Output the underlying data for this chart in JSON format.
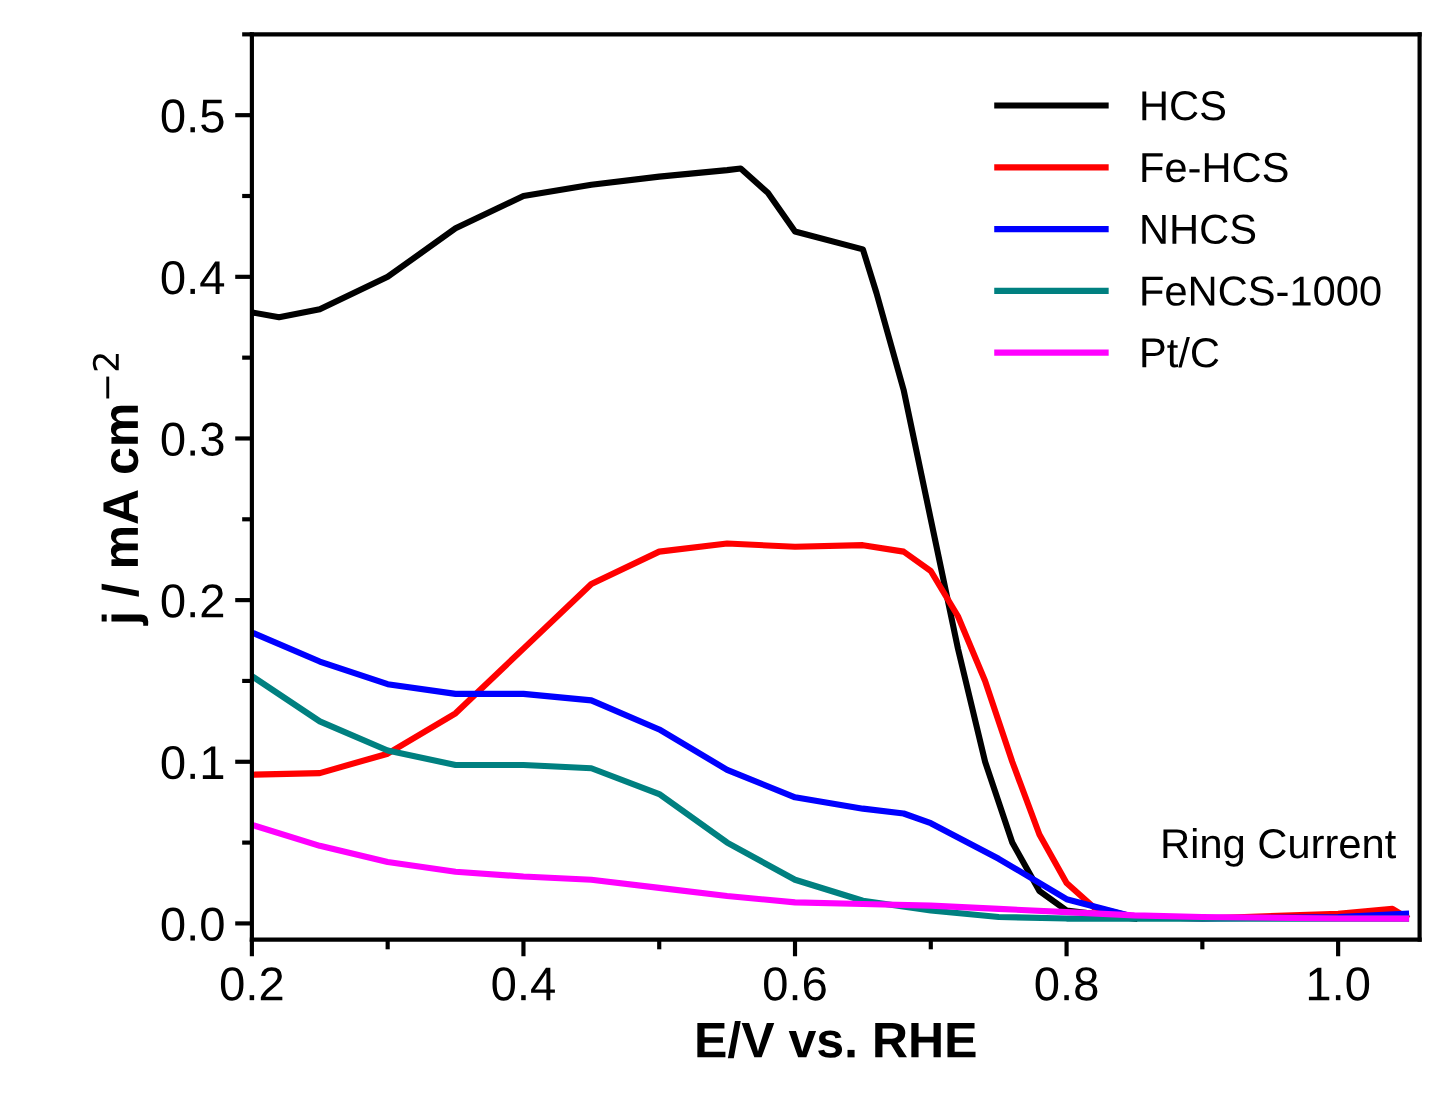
{
  "chart_data": {
    "type": "line",
    "xlabel": "E/V vs. RHE",
    "ylabel": "j / mA cm$^{−2}$",
    "xlim": [
      0.2,
      1.06
    ],
    "ylim": [
      -0.01,
      0.55
    ],
    "xticks": [
      {
        "value": 0.2,
        "label": "0.2"
      },
      {
        "value": 0.4,
        "label": "0.4"
      },
      {
        "value": 0.6,
        "label": "0.6"
      },
      {
        "value": 0.8,
        "label": "0.8"
      },
      {
        "value": 1.0,
        "label": "1.0"
      }
    ],
    "yticks": [
      {
        "value": 0.0,
        "label": "0.0"
      },
      {
        "value": 0.1,
        "label": "0.1"
      },
      {
        "value": 0.2,
        "label": "0.2"
      },
      {
        "value": 0.3,
        "label": "0.3"
      },
      {
        "value": 0.4,
        "label": "0.4"
      },
      {
        "value": 0.5,
        "label": "0.5"
      }
    ],
    "legend": "top right",
    "grid": false,
    "line_style": "solid",
    "annotations": [
      "Ring Current"
    ],
    "series": [
      {
        "name": "HCS",
        "color": "#000000",
        "x": [
          0.2,
          0.22,
          0.25,
          0.3,
          0.35,
          0.4,
          0.45,
          0.5,
          0.55,
          0.56,
          0.58,
          0.6,
          0.65,
          0.66,
          0.68,
          0.7,
          0.72,
          0.74,
          0.76,
          0.78,
          0.8,
          0.85
        ],
        "values": [
          0.378,
          0.375,
          0.38,
          0.4,
          0.43,
          0.45,
          0.457,
          0.462,
          0.466,
          0.467,
          0.452,
          0.428,
          0.417,
          0.39,
          0.33,
          0.25,
          0.17,
          0.1,
          0.05,
          0.02,
          0.008,
          0.003
        ]
      },
      {
        "name": "Fe-HCS",
        "color": "#ff0000",
        "x": [
          0.2,
          0.25,
          0.3,
          0.35,
          0.4,
          0.45,
          0.5,
          0.55,
          0.6,
          0.65,
          0.68,
          0.7,
          0.72,
          0.74,
          0.76,
          0.78,
          0.8,
          0.82,
          0.85,
          0.9,
          1.0,
          1.04,
          1.05
        ],
        "values": [
          0.092,
          0.093,
          0.105,
          0.13,
          0.17,
          0.21,
          0.23,
          0.235,
          0.233,
          0.234,
          0.23,
          0.218,
          0.19,
          0.15,
          0.1,
          0.055,
          0.025,
          0.01,
          0.004,
          0.003,
          0.006,
          0.009,
          0.004
        ]
      },
      {
        "name": "NHCS",
        "color": "#0000ff",
        "x": [
          0.2,
          0.25,
          0.3,
          0.35,
          0.4,
          0.45,
          0.5,
          0.55,
          0.6,
          0.65,
          0.68,
          0.7,
          0.75,
          0.8,
          0.85,
          0.9,
          1.0,
          1.05
        ],
        "values": [
          0.18,
          0.162,
          0.148,
          0.142,
          0.142,
          0.138,
          0.12,
          0.095,
          0.078,
          0.071,
          0.068,
          0.062,
          0.04,
          0.015,
          0.004,
          0.003,
          0.004,
          0.006
        ]
      },
      {
        "name": "FeNCS-1000",
        "color": "#008080",
        "x": [
          0.2,
          0.25,
          0.3,
          0.35,
          0.4,
          0.45,
          0.5,
          0.55,
          0.6,
          0.65,
          0.7,
          0.75,
          0.8,
          0.9,
          1.0,
          1.05
        ],
        "values": [
          0.153,
          0.125,
          0.107,
          0.098,
          0.098,
          0.096,
          0.08,
          0.05,
          0.027,
          0.014,
          0.008,
          0.004,
          0.003,
          0.003,
          0.003,
          0.003
        ]
      },
      {
        "name": "Pt/C",
        "color": "#ff00ff",
        "x": [
          0.2,
          0.25,
          0.3,
          0.35,
          0.4,
          0.45,
          0.5,
          0.55,
          0.6,
          0.65,
          0.7,
          0.75,
          0.8,
          0.85,
          0.9,
          1.0,
          1.05
        ],
        "values": [
          0.061,
          0.048,
          0.038,
          0.032,
          0.029,
          0.027,
          0.022,
          0.017,
          0.013,
          0.012,
          0.011,
          0.009,
          0.007,
          0.005,
          0.004,
          0.003,
          0.003
        ]
      }
    ]
  }
}
